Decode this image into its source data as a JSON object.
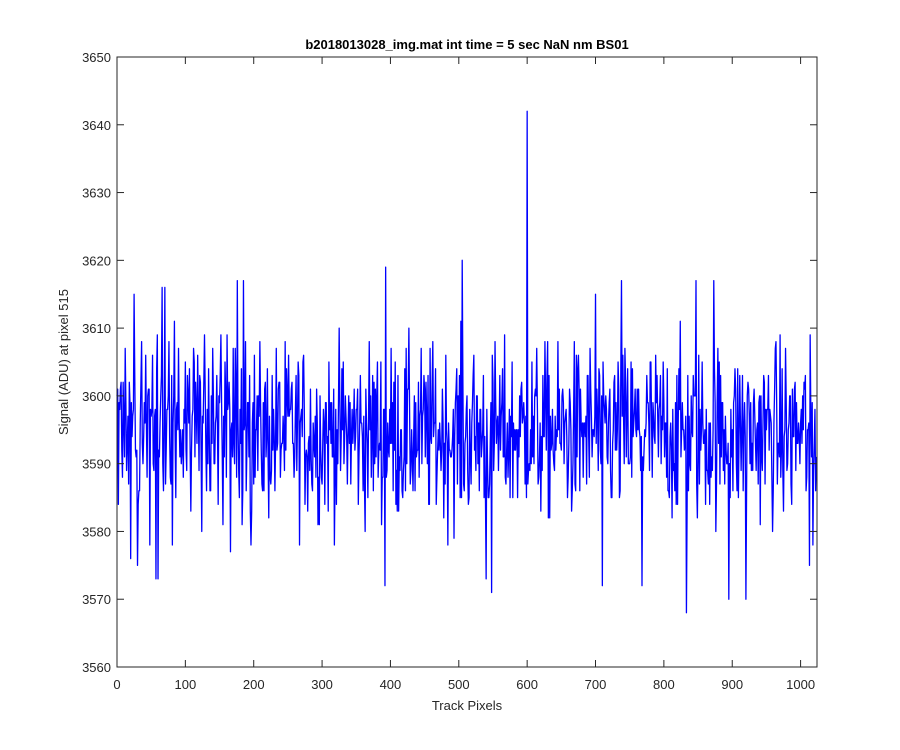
{
  "chart_data": {
    "type": "line",
    "title": "b2018013028_img.mat int time = 5 sec  NaN nm BS01",
    "xlabel": "Track Pixels",
    "ylabel": "Signal (ADU) at pixel 515",
    "xlim": [
      0,
      1024
    ],
    "ylim": [
      3560,
      3650
    ],
    "xticks": [
      0,
      100,
      200,
      300,
      400,
      500,
      600,
      700,
      800,
      900,
      1000
    ],
    "yticks": [
      3560,
      3570,
      3580,
      3590,
      3600,
      3610,
      3620,
      3630,
      3640,
      3650
    ],
    "grid": false,
    "line_color": "#0000ff",
    "series": [
      {
        "x_start": 0,
        "x_step": 2,
        "values": [
          3600,
          3584,
          3598,
          3602,
          3588,
          3596,
          3607,
          3589,
          3597,
          3602,
          3576,
          3594,
          3598,
          3603,
          3591,
          3611,
          3586,
          3596,
          3608,
          3590,
          3599,
          3606,
          3588,
          3601,
          3578,
          3597,
          3606,
          3589,
          3598,
          3604,
          3573,
          3591,
          3600,
          3609,
          3586,
          3616,
          3592,
          3598,
          3608,
          3588,
          3603,
          3596,
          3611,
          3585,
          3599,
          3607,
          3591,
          3590,
          3595,
          3598,
          3605,
          3589,
          3600,
          3604,
          3583,
          3597,
          3607,
          3591,
          3598,
          3606,
          3589,
          3602,
          3580,
          3596,
          3609,
          3592,
          3598,
          3604,
          3586,
          3600,
          3607,
          3590,
          3596,
          3603,
          3584,
          3599,
          3609,
          3591,
          3597,
          3605,
          3588,
          3598,
          3602,
          3577,
          3596,
          3607,
          3590,
          3601,
          3617,
          3589,
          3598,
          3604,
          3586,
          3595,
          3608,
          3592,
          3599,
          3603,
          3578,
          3596
        ],
        "description": "Dense blue noise trace centred near 3595 ADU spanning pixels 0–1024; spikes include ~3642 at pixel 600, ~3620 near 505, ~3619 near 393, ~3617 near 185 and ~3568 near 833 (values estimated from the plot)"
      }
    ],
    "noise_spec": {
      "points": 1024,
      "baseline": 3594.5,
      "amplitude": 6.5,
      "max_dev_high": 22,
      "max_dev_low": 26,
      "spikes": [
        {
          "x": 600,
          "y": 3642
        },
        {
          "x": 505,
          "y": 3620
        },
        {
          "x": 393,
          "y": 3619
        },
        {
          "x": 185,
          "y": 3617
        },
        {
          "x": 25,
          "y": 3615
        },
        {
          "x": 30,
          "y": 3575
        },
        {
          "x": 57,
          "y": 3573
        },
        {
          "x": 66,
          "y": 3616
        },
        {
          "x": 392,
          "y": 3572
        },
        {
          "x": 548,
          "y": 3571
        },
        {
          "x": 540,
          "y": 3573
        },
        {
          "x": 710,
          "y": 3572
        },
        {
          "x": 768,
          "y": 3572
        },
        {
          "x": 833,
          "y": 3568
        },
        {
          "x": 895,
          "y": 3570
        },
        {
          "x": 920,
          "y": 3570
        },
        {
          "x": 738,
          "y": 3617
        },
        {
          "x": 700,
          "y": 3615
        },
        {
          "x": 847,
          "y": 3617
        },
        {
          "x": 873,
          "y": 3617
        },
        {
          "x": 1013,
          "y": 3575
        },
        {
          "x": 1018,
          "y": 3578
        }
      ]
    }
  }
}
